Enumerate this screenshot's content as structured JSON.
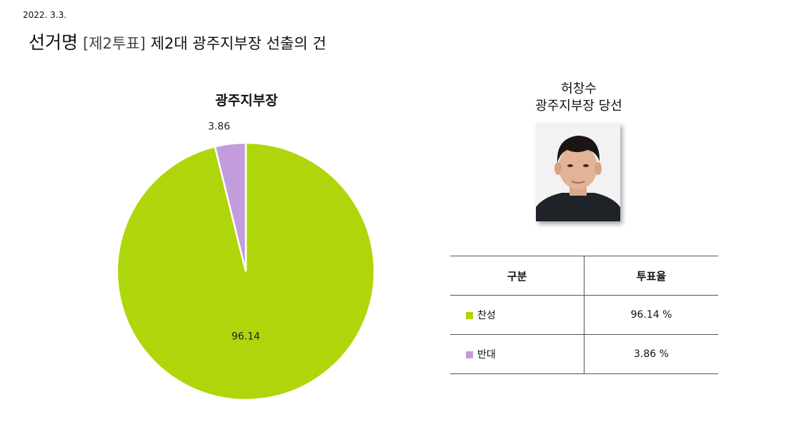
{
  "header": {
    "date": "2022. 3.3.",
    "title_main": "선거명",
    "title_bracket": "[제2투표]",
    "title_sub": "제2대 광주지부장 선출의 건"
  },
  "result": {
    "name": "허창수",
    "status": "광주지부장 당선"
  },
  "table": {
    "headers": [
      "구분",
      "투표율"
    ],
    "rows": [
      {
        "label": "찬성",
        "value": "96.14 %",
        "color": "#afd60b"
      },
      {
        "label": "반대",
        "value": "3.86 %",
        "color": "#c39ddb"
      }
    ]
  },
  "chart_data": {
    "type": "pie",
    "title": "광주지부장",
    "slices": [
      {
        "name": "찬성",
        "value": 96.14,
        "label": "96.14",
        "color": "#afd60b"
      },
      {
        "name": "반대",
        "value": 3.86,
        "label": "3.86",
        "color": "#c39ddb"
      }
    ],
    "start_angle": "12 o'clock",
    "direction": "clockwise",
    "legend": "none"
  }
}
